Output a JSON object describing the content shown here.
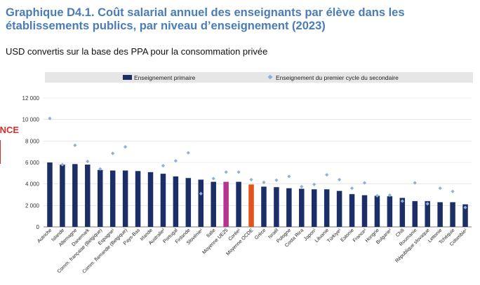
{
  "header": {
    "title": "Graphique D4.1. Coût salarial annuel des enseignants par élève dans les établissements publics, par niveau d’enseignement (2023)",
    "subtitle": "USD convertis sur la base des PPA pour la consommation privée"
  },
  "colors": {
    "primary_bar": "#1b2e66",
    "eu_bar": "#b5358f",
    "oecd_bar": "#e2531f",
    "secondary_marker": "#8fb1d8",
    "annotation": "#d0312d",
    "grid": "#d9d9d9",
    "legend_bg": "#e6e6e6"
  },
  "annotation": {
    "label": "FRANCE",
    "target": "France"
  },
  "chart_data": {
    "type": "bar",
    "title": "Graphique D4.1. Coût salarial annuel des enseignants par élève dans les établissements publics, par niveau d’enseignement (2023)",
    "ylabel": "USD convertis sur la base des PPA pour la consommation privée",
    "xlabel": "",
    "ylim": [
      0,
      12000
    ],
    "yticks": [
      0,
      2000,
      4000,
      6000,
      8000,
      10000,
      12000
    ],
    "ytick_labels": [
      "0",
      "2 000",
      "4 000",
      "6 000",
      "8 000",
      "10 000",
      "12 000"
    ],
    "grid": true,
    "legend": [
      "Enseignement primaire",
      "Enseignement du premier cycle du secondaire"
    ],
    "legend_position": "top",
    "categories": [
      "Autriche",
      "Islande",
      "Allemagne",
      "Danemark",
      "Comm. française (Belgique)",
      "Espagne¹",
      "Comm. flamande (Belgique)",
      "Pays-Bas",
      "Irlande",
      "Australie²",
      "Portugal",
      "Finlande",
      "Slovénie¹",
      "Italie",
      "Moyenne UE25",
      "Corée¹",
      "Moyenne OCDE",
      "Grèce",
      "Israël",
      "Pologne",
      "Costa Rica",
      "Japon¹",
      "Lituanie",
      "Türkiye¹",
      "Estonie",
      "France¹",
      "Hongrie",
      "Bulgarie¹",
      "Chili",
      "Roumanie",
      "République slovaque",
      "Lettonie",
      "Tchéquie",
      "Colombie¹"
    ],
    "series": [
      {
        "name": "Enseignement primaire",
        "kind": "bar",
        "values": [
          6000,
          5800,
          5850,
          5800,
          5300,
          5250,
          5250,
          5200,
          5100,
          4950,
          4700,
          4550,
          4400,
          4200,
          4200,
          4200,
          3950,
          3750,
          3700,
          3600,
          3550,
          3500,
          3500,
          3350,
          3050,
          2950,
          2900,
          2850,
          2700,
          2400,
          2400,
          2300,
          2300,
          2100
        ]
      },
      {
        "name": "Enseignement du premier cycle du secondaire",
        "kind": "marker",
        "values": [
          10100,
          5800,
          7600,
          6100,
          5400,
          6850,
          7450,
          null,
          null,
          5700,
          6150,
          6900,
          3100,
          4500,
          5100,
          5100,
          4400,
          4150,
          4350,
          4700,
          3750,
          3950,
          4850,
          4400,
          3600,
          4100,
          2900,
          2950,
          2400,
          4100,
          2150,
          3600,
          3300,
          1800
        ]
      }
    ]
  }
}
